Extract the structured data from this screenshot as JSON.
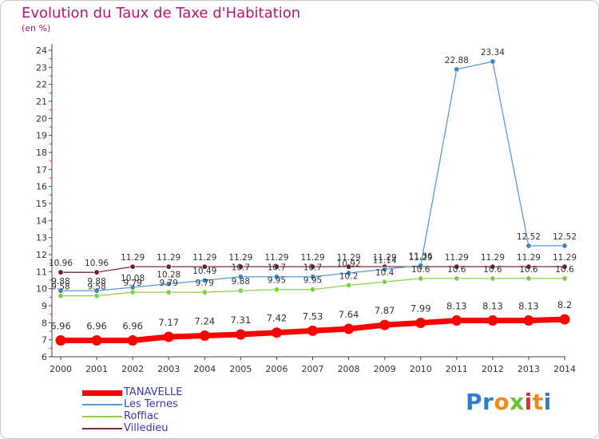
{
  "title": "Evolution du Taux de Taxe d'Habitation",
  "unit_label": "(en %)",
  "logo": {
    "letters": [
      {
        "ch": "P",
        "color": "#2f7fd0"
      },
      {
        "ch": "r",
        "color": "#2f7fd0"
      },
      {
        "ch": "o",
        "color": "#f08a1c"
      },
      {
        "ch": "x",
        "color": "#6bbf2a"
      },
      {
        "ch": "i",
        "color": "#d9342b"
      },
      {
        "ch": "t",
        "color": "#f08a1c"
      },
      {
        "ch": "i",
        "color": "#2f7fd0"
      }
    ]
  },
  "chart_data": {
    "type": "line",
    "title": "Evolution du Taux de Taxe d'Habitation",
    "ylabel": "(en %)",
    "xlabel": "",
    "x": [
      "2000",
      "2001",
      "2002",
      "2003",
      "2004",
      "2005",
      "2006",
      "2007",
      "2008",
      "2009",
      "2010",
      "2011",
      "2012",
      "2013",
      "2014"
    ],
    "ylim": [
      6,
      24
    ],
    "yticks": [
      6,
      7,
      8,
      9,
      10,
      11,
      12,
      13,
      14,
      15,
      16,
      17,
      18,
      19,
      20,
      21,
      22,
      23,
      24
    ],
    "grid": false,
    "legend_position": "bottom-left",
    "series": [
      {
        "name": "TANAVELLE",
        "color": "#ff0000",
        "values": [
          6.96,
          6.96,
          6.96,
          7.17,
          7.24,
          7.31,
          7.42,
          7.53,
          7.64,
          7.87,
          7.99,
          8.13,
          8.13,
          8.13,
          8.2
        ],
        "labels": [
          "6.96",
          "6.96",
          "6.96",
          "7.17",
          "7.24",
          "7.31",
          "7.42",
          "7.53",
          "7.64",
          "7.87",
          "7.99",
          "8.13",
          "8.13",
          "8.13",
          "8.2"
        ]
      },
      {
        "name": "Les Ternes",
        "color": "#5b9bd5",
        "values": [
          9.88,
          9.88,
          10.08,
          10.28,
          10.49,
          10.7,
          10.7,
          10.7,
          10.92,
          11.14,
          11.36,
          22.88,
          23.34,
          12.52,
          12.52
        ],
        "labels": [
          "9.88",
          "9.88",
          "10.08",
          "10.28",
          "10.49",
          "10.7",
          "10.7",
          "10.7",
          "10.92",
          "11.14",
          "11.36",
          "22.88",
          "23.34",
          "12.52",
          "12.52"
        ]
      },
      {
        "name": "Roffiac",
        "color": "#8fd04a",
        "values": [
          9.58,
          9.58,
          9.79,
          9.79,
          9.79,
          9.88,
          9.95,
          9.95,
          10.2,
          10.4,
          10.6,
          10.6,
          10.6,
          10.6,
          10.6
        ],
        "labels": [
          "9.58",
          "9.58",
          "9.79",
          "9.79",
          "9.79",
          "9.88",
          "9.95",
          "9.95",
          "10.2",
          "10.4",
          "10.6",
          "10.6",
          "10.6",
          "10.6",
          "10.6"
        ]
      },
      {
        "name": "Villedieu",
        "color": "#7a2a35",
        "values": [
          10.96,
          10.96,
          11.29,
          11.29,
          11.29,
          11.29,
          11.29,
          11.29,
          11.29,
          11.29,
          11.29,
          11.29,
          11.29,
          11.29,
          11.29
        ],
        "labels": [
          "10.96",
          "10.96",
          "11.29",
          "11.29",
          "11.29",
          "11.29",
          "11.29",
          "11.29",
          "11.29",
          "11.29",
          "11.29",
          "11.29",
          "11.29",
          "11.29",
          "11.29"
        ]
      }
    ]
  }
}
